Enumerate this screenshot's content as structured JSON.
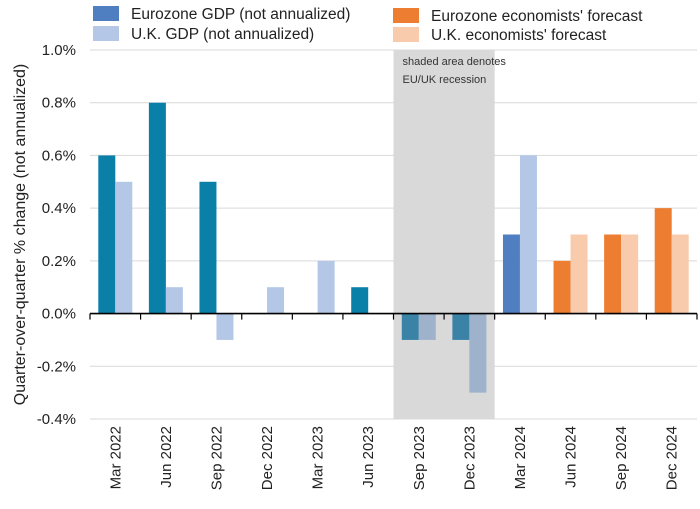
{
  "chart_data": {
    "type": "bar",
    "categories": [
      "Mar 2022",
      "Jun 2022",
      "Sep 2022",
      "Dec 2022",
      "Mar 2023",
      "Jun 2023",
      "Sep 2023",
      "Dec 2023",
      "Mar 2024",
      "Jun 2024",
      "Sep 2024",
      "Dec 2024"
    ],
    "series": [
      {
        "name": "Eurozone GDP (not annualized)",
        "values": [
          0.6,
          0.8,
          0.5,
          0.0,
          0.0,
          0.1,
          -0.1,
          -0.1,
          0.3,
          null,
          null,
          null
        ],
        "color": "#0a7fa8",
        "color_recession": "#3b83a6",
        "color_recent": "#4f7fc0"
      },
      {
        "name": "U.K. GDP (not annualized)",
        "values": [
          0.5,
          0.1,
          -0.1,
          0.1,
          0.2,
          0.0,
          -0.1,
          -0.3,
          0.6,
          null,
          null,
          null
        ],
        "color": "#b4c7e7",
        "color_recession": "#9fb2cb"
      },
      {
        "name": "Eurozone economists' forecast",
        "values": [
          null,
          null,
          null,
          null,
          null,
          null,
          null,
          null,
          null,
          0.2,
          0.3,
          0.4
        ],
        "color": "#ed7d31"
      },
      {
        "name": "U.K. economists' forecast",
        "values": [
          null,
          null,
          null,
          null,
          null,
          null,
          null,
          null,
          null,
          0.3,
          0.3,
          0.3
        ],
        "color": "#f8cbad"
      }
    ],
    "ylabel": "Quarter-over-quarter % change (not annualized)",
    "ylim": [
      -0.4,
      1.0
    ],
    "yticks": [
      "1.0%",
      "0.8%",
      "0.6%",
      "0.4%",
      "0.2%",
      "0.0%",
      "-0.2%",
      "-0.4%"
    ],
    "ytick_values": [
      1.0,
      0.8,
      0.6,
      0.4,
      0.2,
      0.0,
      -0.2,
      -0.4
    ],
    "shaded_region": {
      "categories": [
        "Sep 2023",
        "Dec 2023"
      ],
      "annotation_line1": "shaded area denotes",
      "annotation_line2": "EU/UK recession",
      "color": "#d9d9d9"
    },
    "grid": true,
    "legend_placement": "top"
  }
}
